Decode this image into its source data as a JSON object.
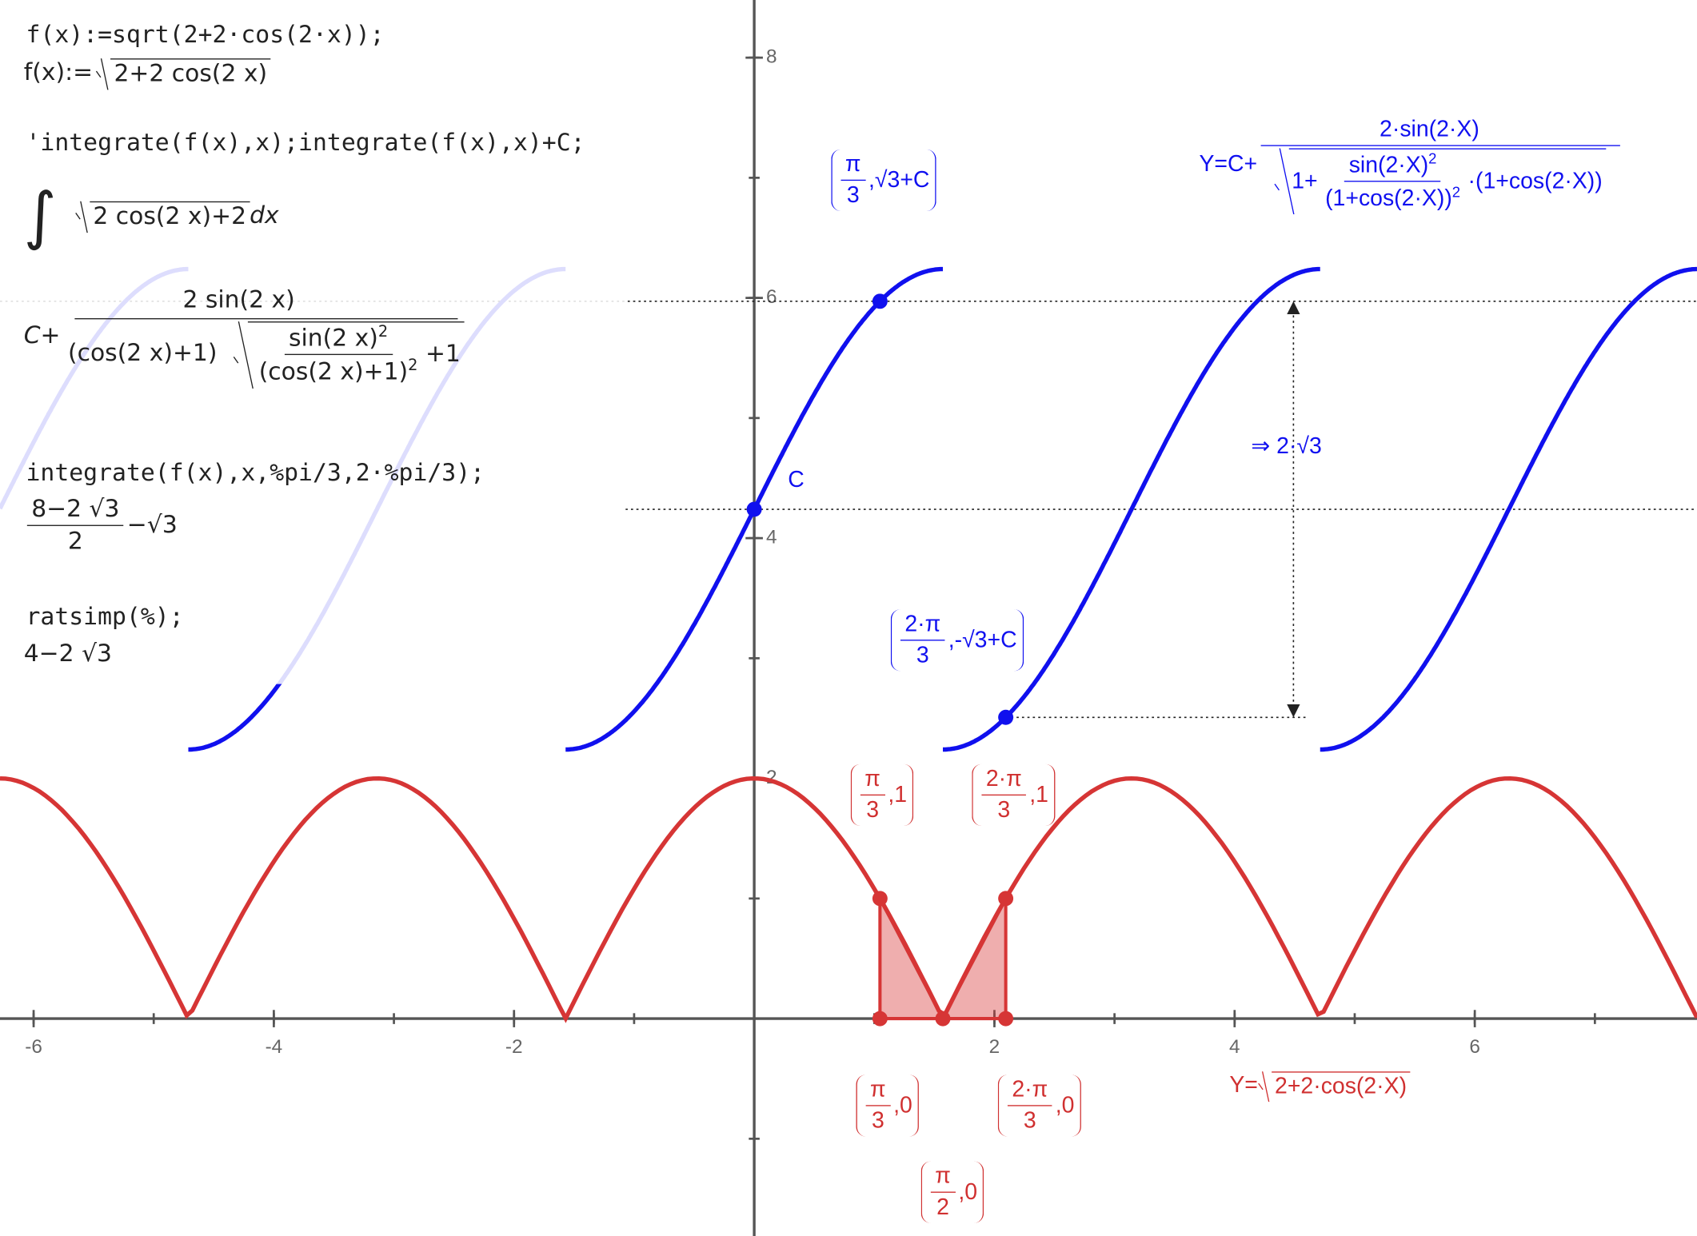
{
  "console": {
    "inputs": [
      "f(x):=sqrt(2+2·cos(2·x));",
      "'integrate(f(x),x);integrate(f(x),x)+C;",
      "integrate(f(x),x,%pi/3,2·%pi/3);",
      "ratsimp(%);"
    ],
    "out1": {
      "lhs": "f(x):=",
      "radicand": "2+2 cos(2 x)"
    },
    "out2": {
      "sign": "∫",
      "radicand": "2 cos(2 x)+2",
      "dx": "dx"
    },
    "out3": {
      "lead": "C+",
      "num": "2 sin(2 x)",
      "den": "(cos(2 x)+1)",
      "inner_num": "sin(2 x)",
      "inner_den": "(cos(2 x)+1)",
      "exp": "2",
      "tail": "+1"
    },
    "out4": {
      "num": "8−2 √3",
      "den": "2",
      "tail": "−√3"
    },
    "out5": "4−2 √3"
  },
  "graph": {
    "xlim": [
      -6.28,
      7.85
    ],
    "ylim": [
      -1.81,
      8.48
    ],
    "xticks": [
      -6,
      -4,
      -2,
      2,
      4,
      6
    ],
    "yticks": [
      2,
      4,
      6,
      8
    ]
  },
  "labels": {
    "blue_point_1": {
      "num": "π",
      "den": "3",
      "rest": ",√3+C"
    },
    "blue_point_2": {
      "num": "2·π",
      "den": "3",
      "rest": ",-√3+C"
    },
    "c_point": "C",
    "difference": "⇒ 2·√3",
    "blue_formula": {
      "lead": "Y=C+",
      "num": "2·sin(2·X)",
      "one": "1+",
      "inner_num": "sin(2·X)",
      "inner_den": "(1+cos(2·X))",
      "exp": "2",
      "tail": "·(1+cos(2·X))"
    },
    "red_points": [
      {
        "num": "π",
        "den": "3",
        "rest": ",1"
      },
      {
        "num": "2·π",
        "den": "3",
        "rest": ",1"
      },
      {
        "num": "π",
        "den": "3",
        "rest": ",0"
      },
      {
        "num": "2·π",
        "den": "3",
        "rest": ",0"
      },
      {
        "num": "π",
        "den": "2",
        "rest": ",0"
      }
    ],
    "red_formula": {
      "lead": "Y=",
      "radicand": "2+2·cos(2·X)"
    }
  }
}
